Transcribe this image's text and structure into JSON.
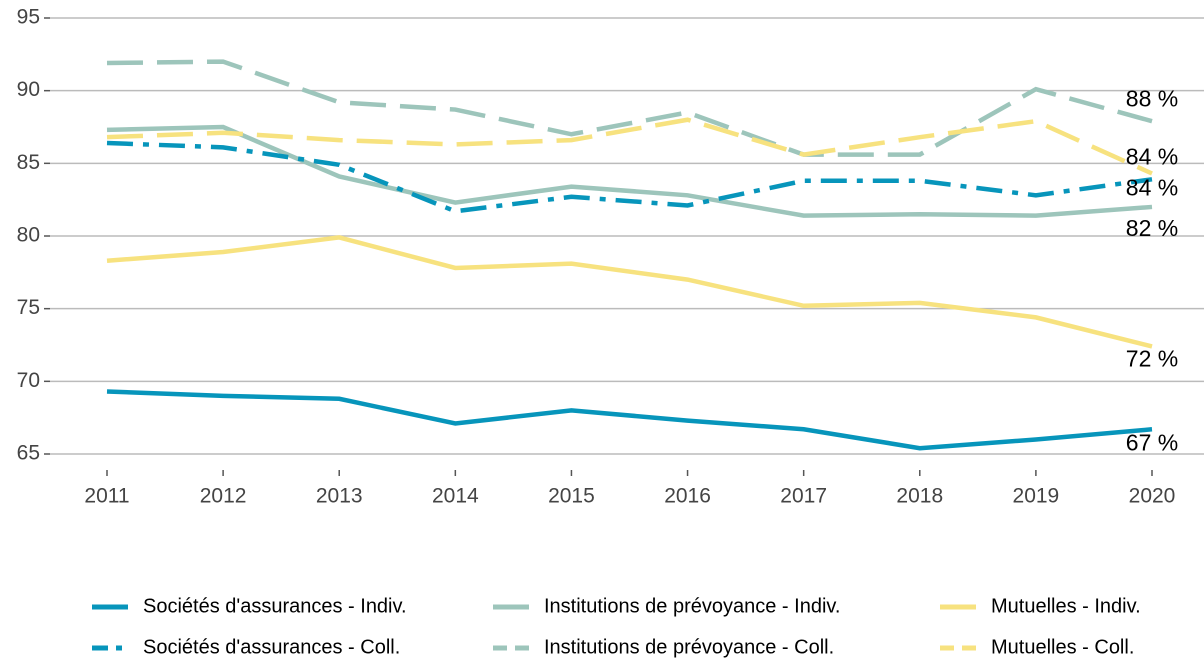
{
  "chart_data": {
    "type": "line",
    "x": [
      2011,
      2012,
      2013,
      2014,
      2015,
      2016,
      2017,
      2018,
      2019,
      2020
    ],
    "ylim": [
      65,
      95
    ],
    "yticks": [
      65,
      70,
      75,
      80,
      85,
      90,
      95
    ],
    "grid": true,
    "legend": "bottom",
    "series": [
      {
        "name": "Sociétés d'assurances - Indiv.",
        "color": "#0795bb",
        "dash": "solid",
        "values": [
          69.3,
          69.0,
          68.8,
          67.1,
          68.0,
          67.3,
          66.7,
          65.4,
          66.0,
          66.7
        ],
        "value_labels": [
          null,
          null,
          null,
          null,
          null,
          null,
          null,
          null,
          null,
          "67 %"
        ]
      },
      {
        "name": "Institutions de prévoyance - Indiv.",
        "color": "#9dc5bb",
        "dash": "solid",
        "values": [
          87.3,
          87.5,
          84.1,
          82.3,
          83.4,
          82.8,
          81.4,
          81.5,
          81.4,
          82.0
        ],
        "value_labels": [
          null,
          null,
          null,
          null,
          null,
          null,
          null,
          null,
          null,
          "82 %"
        ]
      },
      {
        "name": "Mutuelles - Indiv.",
        "color": "#f7e27f",
        "dash": "solid",
        "values": [
          78.3,
          78.9,
          79.9,
          77.8,
          78.1,
          77.0,
          75.2,
          75.4,
          74.4,
          72.4
        ],
        "value_labels": [
          null,
          null,
          null,
          null,
          null,
          null,
          null,
          null,
          null,
          "72 %"
        ]
      },
      {
        "name": "Sociétés d'assurances - Coll.",
        "color": "#0795bb",
        "dash": "dashdot",
        "values": [
          86.4,
          86.1,
          84.9,
          81.7,
          82.7,
          82.1,
          83.8,
          83.8,
          82.8,
          83.9
        ],
        "value_labels": [
          null,
          null,
          null,
          null,
          null,
          null,
          null,
          null,
          null,
          "84 %"
        ]
      },
      {
        "name": "Institutions de prévoyance - Coll.",
        "color": "#9dc5bb",
        "dash": "dashed",
        "values": [
          91.9,
          92.0,
          89.2,
          88.7,
          87.0,
          88.5,
          85.6,
          85.6,
          90.1,
          87.9
        ],
        "value_labels": [
          null,
          null,
          null,
          null,
          null,
          null,
          null,
          null,
          null,
          "88 %"
        ]
      },
      {
        "name": "Mutuelles - Coll.",
        "color": "#f7e27f",
        "dash": "dashed",
        "values": [
          86.8,
          87.1,
          86.6,
          86.3,
          86.6,
          88.0,
          85.6,
          86.8,
          87.9,
          84.3
        ],
        "value_labels": [
          null,
          null,
          null,
          null,
          null,
          null,
          null,
          null,
          null,
          "84 %"
        ]
      }
    ]
  }
}
